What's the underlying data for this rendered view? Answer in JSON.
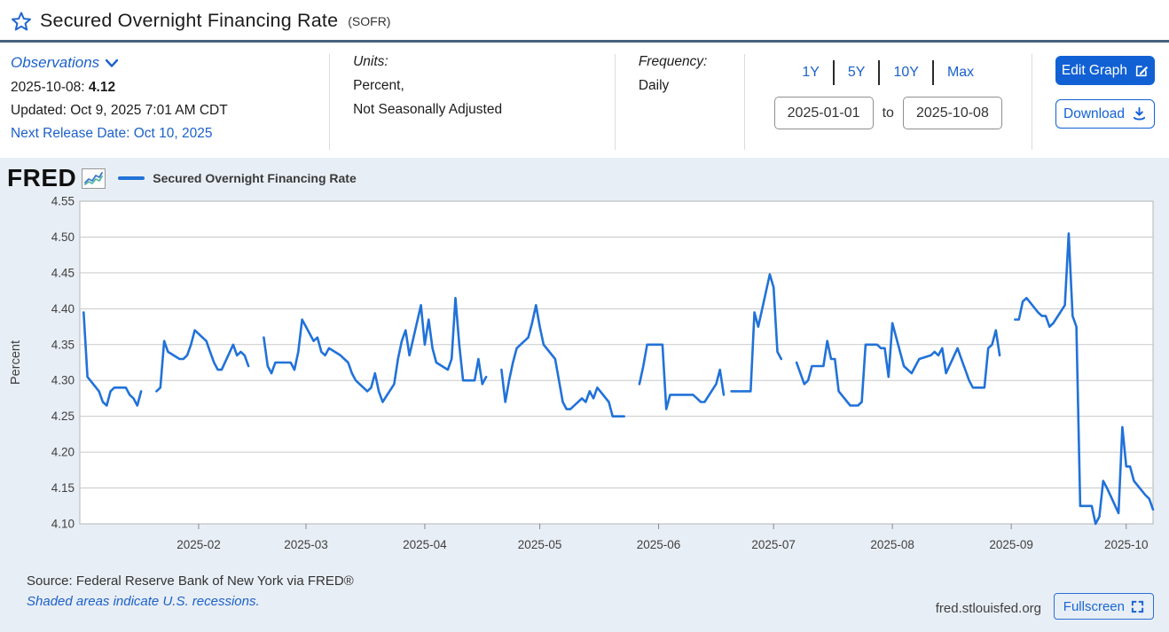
{
  "header": {
    "title": "Secured Overnight Financing Rate",
    "title_suffix": "(SOFR)",
    "observations": {
      "label": "Observations",
      "latest_date": "2025-10-08:",
      "latest_value": "4.12",
      "updated": "Updated: Oct 9, 2025 7:01 AM CDT",
      "next_release": "Next Release Date: Oct 10, 2025"
    },
    "units": {
      "label": "Units:",
      "line1": "Percent,",
      "line2": "Not Seasonally Adjusted"
    },
    "frequency": {
      "label": "Frequency:",
      "value": "Daily"
    },
    "range_buttons": [
      "1Y",
      "5Y",
      "10Y",
      "Max"
    ],
    "date_range": {
      "start": "2025-01-01",
      "separator": "to",
      "end": "2025-10-08"
    },
    "actions": {
      "edit_graph": "Edit Graph",
      "download": "Download"
    }
  },
  "chart_panel": {
    "logo_text": "FRED",
    "legend_label": "Secured Overnight Financing Rate"
  },
  "footer": {
    "source": "Source: Federal Reserve Bank of New York via FRED®",
    "recessions_note": "Shaded areas indicate U.S. recessions.",
    "site": "fred.stlouisfed.org",
    "fullscreen_label": "Fullscreen"
  },
  "colors": {
    "line": "#2172d8",
    "accent_blue": "#1161d4",
    "link_blue": "#1c61c9",
    "panel_bg": "#e8eef5",
    "grid": "#c9c9c9",
    "plot_border": "#b5b5b5",
    "tick_text": "#3f3f3f"
  },
  "chart_data": {
    "type": "line",
    "title": "Secured Overnight Financing Rate",
    "xlabel": "",
    "ylabel": "Percent",
    "ylim": [
      4.1,
      4.55
    ],
    "y_ticks": [
      4.55,
      4.5,
      4.45,
      4.4,
      4.35,
      4.3,
      4.25,
      4.2,
      4.15,
      4.1
    ],
    "x_ticks": [
      "2025-02",
      "2025-03",
      "2025-04",
      "2025-05",
      "2025-06",
      "2025-07",
      "2025-08",
      "2025-09",
      "2025-10"
    ],
    "x_range": [
      "2025-01-01",
      "2025-10-08"
    ],
    "grid": true,
    "legend_position": "top-left",
    "series": [
      {
        "name": "Secured Overnight Financing Rate",
        "color": "#2172d8",
        "points": [
          [
            "2025-01-02",
            4.395
          ],
          [
            "2025-01-03",
            4.305
          ],
          [
            "2025-01-06",
            4.285
          ],
          [
            "2025-01-07",
            4.27
          ],
          [
            "2025-01-08",
            4.265
          ],
          [
            "2025-01-09",
            4.285
          ],
          [
            "2025-01-10",
            4.29
          ],
          [
            "2025-01-13",
            4.29
          ],
          [
            "2025-01-14",
            4.28
          ],
          [
            "2025-01-15",
            4.275
          ],
          [
            "2025-01-16",
            4.265
          ],
          [
            "2025-01-17",
            4.285
          ],
          [
            "2025-01-20",
            null
          ],
          [
            "2025-01-21",
            4.285
          ],
          [
            "2025-01-22",
            4.29
          ],
          [
            "2025-01-23",
            4.355
          ],
          [
            "2025-01-24",
            4.34
          ],
          [
            "2025-01-27",
            4.33
          ],
          [
            "2025-01-28",
            4.33
          ],
          [
            "2025-01-29",
            4.335
          ],
          [
            "2025-01-30",
            4.35
          ],
          [
            "2025-01-31",
            4.37
          ],
          [
            "2025-02-03",
            4.355
          ],
          [
            "2025-02-04",
            4.34
          ],
          [
            "2025-02-05",
            4.325
          ],
          [
            "2025-02-06",
            4.315
          ],
          [
            "2025-02-07",
            4.315
          ],
          [
            "2025-02-10",
            4.35
          ],
          [
            "2025-02-11",
            4.335
          ],
          [
            "2025-02-12",
            4.34
          ],
          [
            "2025-02-13",
            4.335
          ],
          [
            "2025-02-14",
            4.32
          ],
          [
            "2025-02-17",
            null
          ],
          [
            "2025-02-18",
            4.36
          ],
          [
            "2025-02-19",
            4.32
          ],
          [
            "2025-02-20",
            4.31
          ],
          [
            "2025-02-21",
            4.325
          ],
          [
            "2025-02-24",
            4.325
          ],
          [
            "2025-02-25",
            4.325
          ],
          [
            "2025-02-26",
            4.315
          ],
          [
            "2025-02-27",
            4.34
          ],
          [
            "2025-02-28",
            4.385
          ],
          [
            "2025-03-03",
            4.355
          ],
          [
            "2025-03-04",
            4.36
          ],
          [
            "2025-03-05",
            4.34
          ],
          [
            "2025-03-06",
            4.335
          ],
          [
            "2025-03-07",
            4.345
          ],
          [
            "2025-03-10",
            4.335
          ],
          [
            "2025-03-11",
            4.33
          ],
          [
            "2025-03-12",
            4.325
          ],
          [
            "2025-03-13",
            4.31
          ],
          [
            "2025-03-14",
            4.3
          ],
          [
            "2025-03-17",
            4.285
          ],
          [
            "2025-03-18",
            4.29
          ],
          [
            "2025-03-19",
            4.31
          ],
          [
            "2025-03-20",
            4.285
          ],
          [
            "2025-03-21",
            4.27
          ],
          [
            "2025-03-24",
            4.295
          ],
          [
            "2025-03-25",
            4.33
          ],
          [
            "2025-03-26",
            4.355
          ],
          [
            "2025-03-27",
            4.37
          ],
          [
            "2025-03-28",
            4.335
          ],
          [
            "2025-03-31",
            4.405
          ],
          [
            "2025-04-01",
            4.35
          ],
          [
            "2025-04-02",
            4.385
          ],
          [
            "2025-04-03",
            4.345
          ],
          [
            "2025-04-04",
            4.325
          ],
          [
            "2025-04-07",
            4.315
          ],
          [
            "2025-04-08",
            4.33
          ],
          [
            "2025-04-09",
            4.415
          ],
          [
            "2025-04-10",
            4.35
          ],
          [
            "2025-04-11",
            4.3
          ],
          [
            "2025-04-14",
            4.3
          ],
          [
            "2025-04-15",
            4.33
          ],
          [
            "2025-04-16",
            4.295
          ],
          [
            "2025-04-17",
            4.305
          ],
          [
            "2025-04-18",
            null
          ],
          [
            "2025-04-21",
            4.315
          ],
          [
            "2025-04-22",
            4.27
          ],
          [
            "2025-04-23",
            4.3
          ],
          [
            "2025-04-24",
            4.325
          ],
          [
            "2025-04-25",
            4.345
          ],
          [
            "2025-04-28",
            4.36
          ],
          [
            "2025-04-29",
            4.38
          ],
          [
            "2025-04-30",
            4.405
          ],
          [
            "2025-05-01",
            4.375
          ],
          [
            "2025-05-02",
            4.35
          ],
          [
            "2025-05-05",
            4.33
          ],
          [
            "2025-05-06",
            4.3
          ],
          [
            "2025-05-07",
            4.27
          ],
          [
            "2025-05-08",
            4.26
          ],
          [
            "2025-05-09",
            4.26
          ],
          [
            "2025-05-12",
            4.275
          ],
          [
            "2025-05-13",
            4.27
          ],
          [
            "2025-05-14",
            4.285
          ],
          [
            "2025-05-15",
            4.275
          ],
          [
            "2025-05-16",
            4.29
          ],
          [
            "2025-05-19",
            4.27
          ],
          [
            "2025-05-20",
            4.25
          ],
          [
            "2025-05-21",
            4.25
          ],
          [
            "2025-05-22",
            4.25
          ],
          [
            "2025-05-23",
            4.25
          ],
          [
            "2025-05-26",
            null
          ],
          [
            "2025-05-27",
            4.295
          ],
          [
            "2025-05-28",
            4.32
          ],
          [
            "2025-05-29",
            4.35
          ],
          [
            "2025-05-30",
            4.35
          ],
          [
            "2025-06-02",
            4.35
          ],
          [
            "2025-06-03",
            4.26
          ],
          [
            "2025-06-04",
            4.28
          ],
          [
            "2025-06-05",
            4.28
          ],
          [
            "2025-06-06",
            4.28
          ],
          [
            "2025-06-09",
            4.28
          ],
          [
            "2025-06-10",
            4.28
          ],
          [
            "2025-06-11",
            4.275
          ],
          [
            "2025-06-12",
            4.27
          ],
          [
            "2025-06-13",
            4.27
          ],
          [
            "2025-06-16",
            4.295
          ],
          [
            "2025-06-17",
            4.315
          ],
          [
            "2025-06-18",
            4.28
          ],
          [
            "2025-06-19",
            null
          ],
          [
            "2025-06-20",
            4.285
          ],
          [
            "2025-06-23",
            4.285
          ],
          [
            "2025-06-24",
            4.285
          ],
          [
            "2025-06-25",
            4.285
          ],
          [
            "2025-06-26",
            4.395
          ],
          [
            "2025-06-27",
            4.375
          ],
          [
            "2025-06-30",
            4.448
          ],
          [
            "2025-07-01",
            4.43
          ],
          [
            "2025-07-02",
            4.34
          ],
          [
            "2025-07-03",
            4.33
          ],
          [
            "2025-07-04",
            null
          ],
          [
            "2025-07-07",
            4.325
          ],
          [
            "2025-07-08",
            4.31
          ],
          [
            "2025-07-09",
            4.295
          ],
          [
            "2025-07-10",
            4.3
          ],
          [
            "2025-07-11",
            4.32
          ],
          [
            "2025-07-14",
            4.32
          ],
          [
            "2025-07-15",
            4.355
          ],
          [
            "2025-07-16",
            4.33
          ],
          [
            "2025-07-17",
            4.33
          ],
          [
            "2025-07-18",
            4.285
          ],
          [
            "2025-07-21",
            4.265
          ],
          [
            "2025-07-22",
            4.265
          ],
          [
            "2025-07-23",
            4.265
          ],
          [
            "2025-07-24",
            4.27
          ],
          [
            "2025-07-25",
            4.35
          ],
          [
            "2025-07-28",
            4.35
          ],
          [
            "2025-07-29",
            4.345
          ],
          [
            "2025-07-30",
            4.345
          ],
          [
            "2025-07-31",
            4.305
          ],
          [
            "2025-08-01",
            4.38
          ],
          [
            "2025-08-04",
            4.32
          ],
          [
            "2025-08-05",
            4.315
          ],
          [
            "2025-08-06",
            4.31
          ],
          [
            "2025-08-07",
            4.32
          ],
          [
            "2025-08-08",
            4.33
          ],
          [
            "2025-08-11",
            4.335
          ],
          [
            "2025-08-12",
            4.34
          ],
          [
            "2025-08-13",
            4.335
          ],
          [
            "2025-08-14",
            4.345
          ],
          [
            "2025-08-15",
            4.31
          ],
          [
            "2025-08-18",
            4.345
          ],
          [
            "2025-08-19",
            4.33
          ],
          [
            "2025-08-20",
            4.315
          ],
          [
            "2025-08-21",
            4.3
          ],
          [
            "2025-08-22",
            4.29
          ],
          [
            "2025-08-25",
            4.29
          ],
          [
            "2025-08-26",
            4.345
          ],
          [
            "2025-08-27",
            4.35
          ],
          [
            "2025-08-28",
            4.37
          ],
          [
            "2025-08-29",
            4.335
          ],
          [
            "2025-09-01",
            null
          ],
          [
            "2025-09-02",
            4.385
          ],
          [
            "2025-09-03",
            4.385
          ],
          [
            "2025-09-04",
            4.41
          ],
          [
            "2025-09-05",
            4.415
          ],
          [
            "2025-09-08",
            4.395
          ],
          [
            "2025-09-09",
            4.39
          ],
          [
            "2025-09-10",
            4.39
          ],
          [
            "2025-09-11",
            4.375
          ],
          [
            "2025-09-12",
            4.38
          ],
          [
            "2025-09-15",
            4.405
          ],
          [
            "2025-09-16",
            4.505
          ],
          [
            "2025-09-17",
            4.39
          ],
          [
            "2025-09-18",
            4.375
          ],
          [
            "2025-09-19",
            4.125
          ],
          [
            "2025-09-22",
            4.125
          ],
          [
            "2025-09-23",
            4.1
          ],
          [
            "2025-09-24",
            4.11
          ],
          [
            "2025-09-25",
            4.16
          ],
          [
            "2025-09-26",
            4.15
          ],
          [
            "2025-09-29",
            4.115
          ],
          [
            "2025-09-30",
            4.235
          ],
          [
            "2025-10-01",
            4.18
          ],
          [
            "2025-10-02",
            4.18
          ],
          [
            "2025-10-03",
            4.16
          ],
          [
            "2025-10-06",
            4.14
          ],
          [
            "2025-10-07",
            4.135
          ],
          [
            "2025-10-08",
            4.12
          ]
        ]
      }
    ]
  }
}
